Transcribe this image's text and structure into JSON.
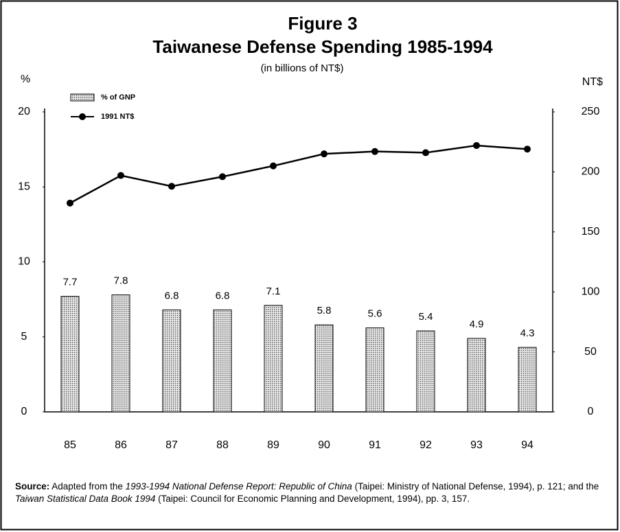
{
  "chart_data": {
    "type": "bar-line",
    "title": "Figure 3",
    "subtitle": "Taiwanese Defense Spending 1985-1994",
    "note": "(in billions of NT$)",
    "y_label": "%",
    "y2_label": "NT$",
    "categories": [
      "85",
      "86",
      "87",
      "88",
      "89",
      "90",
      "91",
      "92",
      "93",
      "94"
    ],
    "series": [
      {
        "name": "% of GNP",
        "type": "bar",
        "color": "#9a9a9a",
        "values": [
          7.7,
          7.8,
          6.8,
          6.8,
          7.1,
          5.8,
          5.6,
          5.4,
          4.9,
          4.3
        ]
      },
      {
        "name": "1991 NT$",
        "type": "line",
        "axis": "y2",
        "color": "#000000",
        "values": [
          174,
          197,
          188,
          196,
          205,
          215,
          217,
          216,
          222,
          219
        ]
      }
    ],
    "ylim": [
      0,
      20
    ],
    "yticks": [
      0,
      5,
      10,
      15,
      20
    ],
    "y2lim": [
      0,
      250
    ],
    "y2ticks": [
      0,
      50,
      100,
      150,
      200,
      250
    ],
    "grid": false,
    "legend": "top-left"
  },
  "source": {
    "label": "Source:",
    "parts": [
      "Adapted from the ",
      "1993-1994 National Defense Report: Republic of China",
      " (Taipei: Ministry of National Defense, 1994), p. 121; and the ",
      "Taiwan Statistical Data Book 1994",
      " (Taipei: Council for Economic Planning and Development, 1994), pp. 3, 157."
    ]
  }
}
